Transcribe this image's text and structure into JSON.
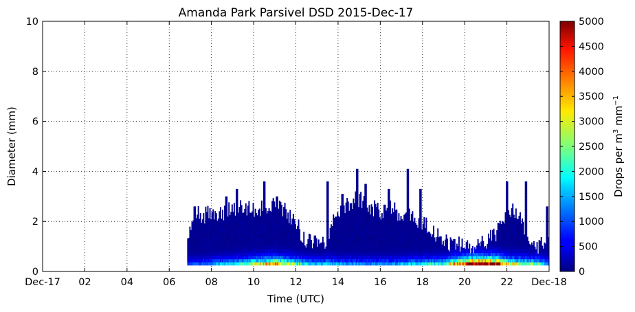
{
  "chart_data": {
    "type": "heatmap",
    "title": "Amanda Park Parsivel DSD 2015-Dec-17",
    "xlabel": "Time (UTC)",
    "ylabel": "Diameter (mm)",
    "x_unit": "hours UTC",
    "xlim": [
      0,
      24
    ],
    "ylim": [
      0,
      10
    ],
    "x_ticks": [
      {
        "value": 0,
        "label": "Dec-17"
      },
      {
        "value": 2,
        "label": "02"
      },
      {
        "value": 4,
        "label": "04"
      },
      {
        "value": 6,
        "label": "06"
      },
      {
        "value": 8,
        "label": "08"
      },
      {
        "value": 10,
        "label": "10"
      },
      {
        "value": 12,
        "label": "12"
      },
      {
        "value": 14,
        "label": "14"
      },
      {
        "value": 16,
        "label": "16"
      },
      {
        "value": 18,
        "label": "18"
      },
      {
        "value": 20,
        "label": "20"
      },
      {
        "value": 22,
        "label": "22"
      },
      {
        "value": 24,
        "label": "Dec-18"
      }
    ],
    "y_ticks": [
      {
        "value": 0,
        "label": "0"
      },
      {
        "value": 2,
        "label": "2"
      },
      {
        "value": 4,
        "label": "4"
      },
      {
        "value": 6,
        "label": "6"
      },
      {
        "value": 8,
        "label": "8"
      },
      {
        "value": 10,
        "label": "10"
      }
    ],
    "grid": true,
    "colorbar": {
      "label": "Drops per m",
      "label_sup1": "3",
      "label_mid": " mm",
      "label_sup2": "−1",
      "colormap": "jet",
      "range": [
        0,
        5000
      ],
      "ticks": [
        {
          "value": 0,
          "label": "0"
        },
        {
          "value": 500,
          "label": "500"
        },
        {
          "value": 1000,
          "label": "1000"
        },
        {
          "value": 1500,
          "label": "1500"
        },
        {
          "value": 2000,
          "label": "2000"
        },
        {
          "value": 2500,
          "label": "2500"
        },
        {
          "value": 3000,
          "label": "3000"
        },
        {
          "value": 3500,
          "label": "3500"
        },
        {
          "value": 4000,
          "label": "4000"
        },
        {
          "value": 4500,
          "label": "4500"
        },
        {
          "value": 5000,
          "label": "5000"
        }
      ]
    },
    "min_diameter": 0.25,
    "data_start": 6.85,
    "data_end": 24.0,
    "max_diameter_profile": [
      [
        6.85,
        0.9
      ],
      [
        7.0,
        1.8
      ],
      [
        7.3,
        2.4
      ],
      [
        7.6,
        2.2
      ],
      [
        8.0,
        2.4
      ],
      [
        8.5,
        2.3
      ],
      [
        9.0,
        2.5
      ],
      [
        9.5,
        2.6
      ],
      [
        10.0,
        2.4
      ],
      [
        10.5,
        2.6
      ],
      [
        11.0,
        2.6
      ],
      [
        11.5,
        2.4
      ],
      [
        12.0,
        2.0
      ],
      [
        12.3,
        1.4
      ],
      [
        12.6,
        1.2
      ],
      [
        13.0,
        1.1
      ],
      [
        13.4,
        1.2
      ],
      [
        13.8,
        2.0
      ],
      [
        14.2,
        2.6
      ],
      [
        14.6,
        2.8
      ],
      [
        15.0,
        2.9
      ],
      [
        15.5,
        2.6
      ],
      [
        16.0,
        2.4
      ],
      [
        16.5,
        2.5
      ],
      [
        17.0,
        2.3
      ],
      [
        17.5,
        2.2
      ],
      [
        18.0,
        2.0
      ],
      [
        18.5,
        1.6
      ],
      [
        19.0,
        1.2
      ],
      [
        19.5,
        1.0
      ],
      [
        20.0,
        1.1
      ],
      [
        20.5,
        1.0
      ],
      [
        21.0,
        1.2
      ],
      [
        21.5,
        1.5
      ],
      [
        22.0,
        2.5
      ],
      [
        22.5,
        2.3
      ],
      [
        23.0,
        1.4
      ],
      [
        23.5,
        1.0
      ],
      [
        24.0,
        1.4
      ]
    ],
    "peak_spikes": [
      [
        7.2,
        2.6
      ],
      [
        8.7,
        3.0
      ],
      [
        9.2,
        3.3
      ],
      [
        10.5,
        3.6
      ],
      [
        11.1,
        3.0
      ],
      [
        13.5,
        3.6
      ],
      [
        14.2,
        3.1
      ],
      [
        14.9,
        4.1
      ],
      [
        15.3,
        3.5
      ],
      [
        16.4,
        3.3
      ],
      [
        17.3,
        4.1
      ],
      [
        17.9,
        3.3
      ],
      [
        22.0,
        3.6
      ],
      [
        22.9,
        3.6
      ],
      [
        23.9,
        2.6
      ]
    ],
    "small_drop_concentration": [
      [
        6.85,
        700
      ],
      [
        7.5,
        900
      ],
      [
        8.0,
        1100
      ],
      [
        8.5,
        1300
      ],
      [
        9.0,
        1500
      ],
      [
        9.5,
        1800
      ],
      [
        10.0,
        2300
      ],
      [
        10.5,
        2700
      ],
      [
        11.0,
        3100
      ],
      [
        11.5,
        2600
      ],
      [
        12.0,
        1900
      ],
      [
        12.5,
        1500
      ],
      [
        13.0,
        1200
      ],
      [
        13.5,
        1400
      ],
      [
        14.0,
        1200
      ],
      [
        15.0,
        1100
      ],
      [
        16.0,
        1100
      ],
      [
        17.0,
        1200
      ],
      [
        18.0,
        1500
      ],
      [
        19.0,
        1700
      ],
      [
        19.5,
        2900
      ],
      [
        20.0,
        3800
      ],
      [
        20.5,
        4500
      ],
      [
        21.0,
        4800
      ],
      [
        21.5,
        4200
      ],
      [
        22.0,
        2600
      ],
      [
        22.5,
        2300
      ],
      [
        23.0,
        2000
      ],
      [
        23.5,
        1800
      ],
      [
        24.0,
        1000
      ]
    ]
  }
}
